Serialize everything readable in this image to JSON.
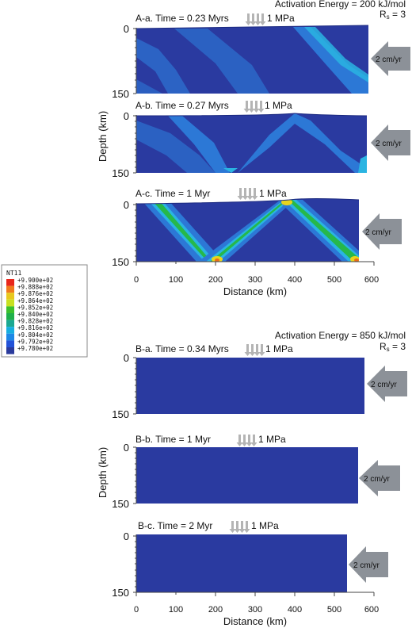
{
  "group_a": {
    "header_line1": "Activation Energy = 200 kJ/mol",
    "header_line2_main": "R",
    "header_line2_sub": "s",
    "header_line2_rest": " = 3",
    "y_axis_label": "Depth (km)",
    "x_axis_label": "Distance (km)",
    "panels": [
      {
        "title": "A-a. Time = 0.23 Myrs",
        "stress": "1 MPa",
        "velocity": "2 cm/yr"
      },
      {
        "title": "A-b. Time = 0.27 Myrs",
        "stress": "1 MPa",
        "velocity": "2 cm/yr"
      },
      {
        "title": "A-c. Time = 1 Myr",
        "stress": "1 MPa",
        "velocity": "2 cm/yr"
      }
    ]
  },
  "group_b": {
    "header_line1": "Activation Energy = 850 kJ/mol",
    "header_line2_main": "R",
    "header_line2_sub": "s",
    "header_line2_rest": " = 3",
    "y_axis_label": "Depth (km)",
    "x_axis_label": "Distance (km)",
    "panels": [
      {
        "title": "B-a. Time = 0.34 Myrs",
        "stress": "1 MPa",
        "velocity": "2 cm/yr"
      },
      {
        "title": "B-b. Time = 1 Myr",
        "stress": "1 MPa",
        "velocity": "2 cm/yr"
      },
      {
        "title": "B-c. Time = 2 Myr",
        "stress": "1 MPa",
        "velocity": "2 cm/yr"
      }
    ]
  },
  "y_ticks": [
    "0",
    "150"
  ],
  "x_ticks": [
    "0",
    "100",
    "200",
    "300",
    "400",
    "500",
    "600"
  ],
  "legend": {
    "title": "NT11",
    "entries": [
      "+9.900e+02",
      "+9.888e+02",
      "+9.876e+02",
      "+9.864e+02",
      "+9.852e+02",
      "+9.840e+02",
      "+9.828e+02",
      "+9.816e+02",
      "+9.804e+02",
      "+9.792e+02",
      "+9.780e+02"
    ],
    "colors": [
      "#e8261a",
      "#f07a1c",
      "#e8c81e",
      "#c8e020",
      "#3cc02c",
      "#1fb04a",
      "#1aa892",
      "#16aee0",
      "#1c88e6",
      "#2252d8",
      "#2a3a9c"
    ]
  },
  "colors": {
    "background_field": "#2a3aa0",
    "band_light": "#2c78d6",
    "band_mid": "#2ab4e2",
    "band_green": "#26b84a",
    "band_yellow": "#e8d41e",
    "band_orange": "#e86a1a",
    "arrow_gray": "#8c9198",
    "stress_arrow": "#b4b4b4"
  }
}
